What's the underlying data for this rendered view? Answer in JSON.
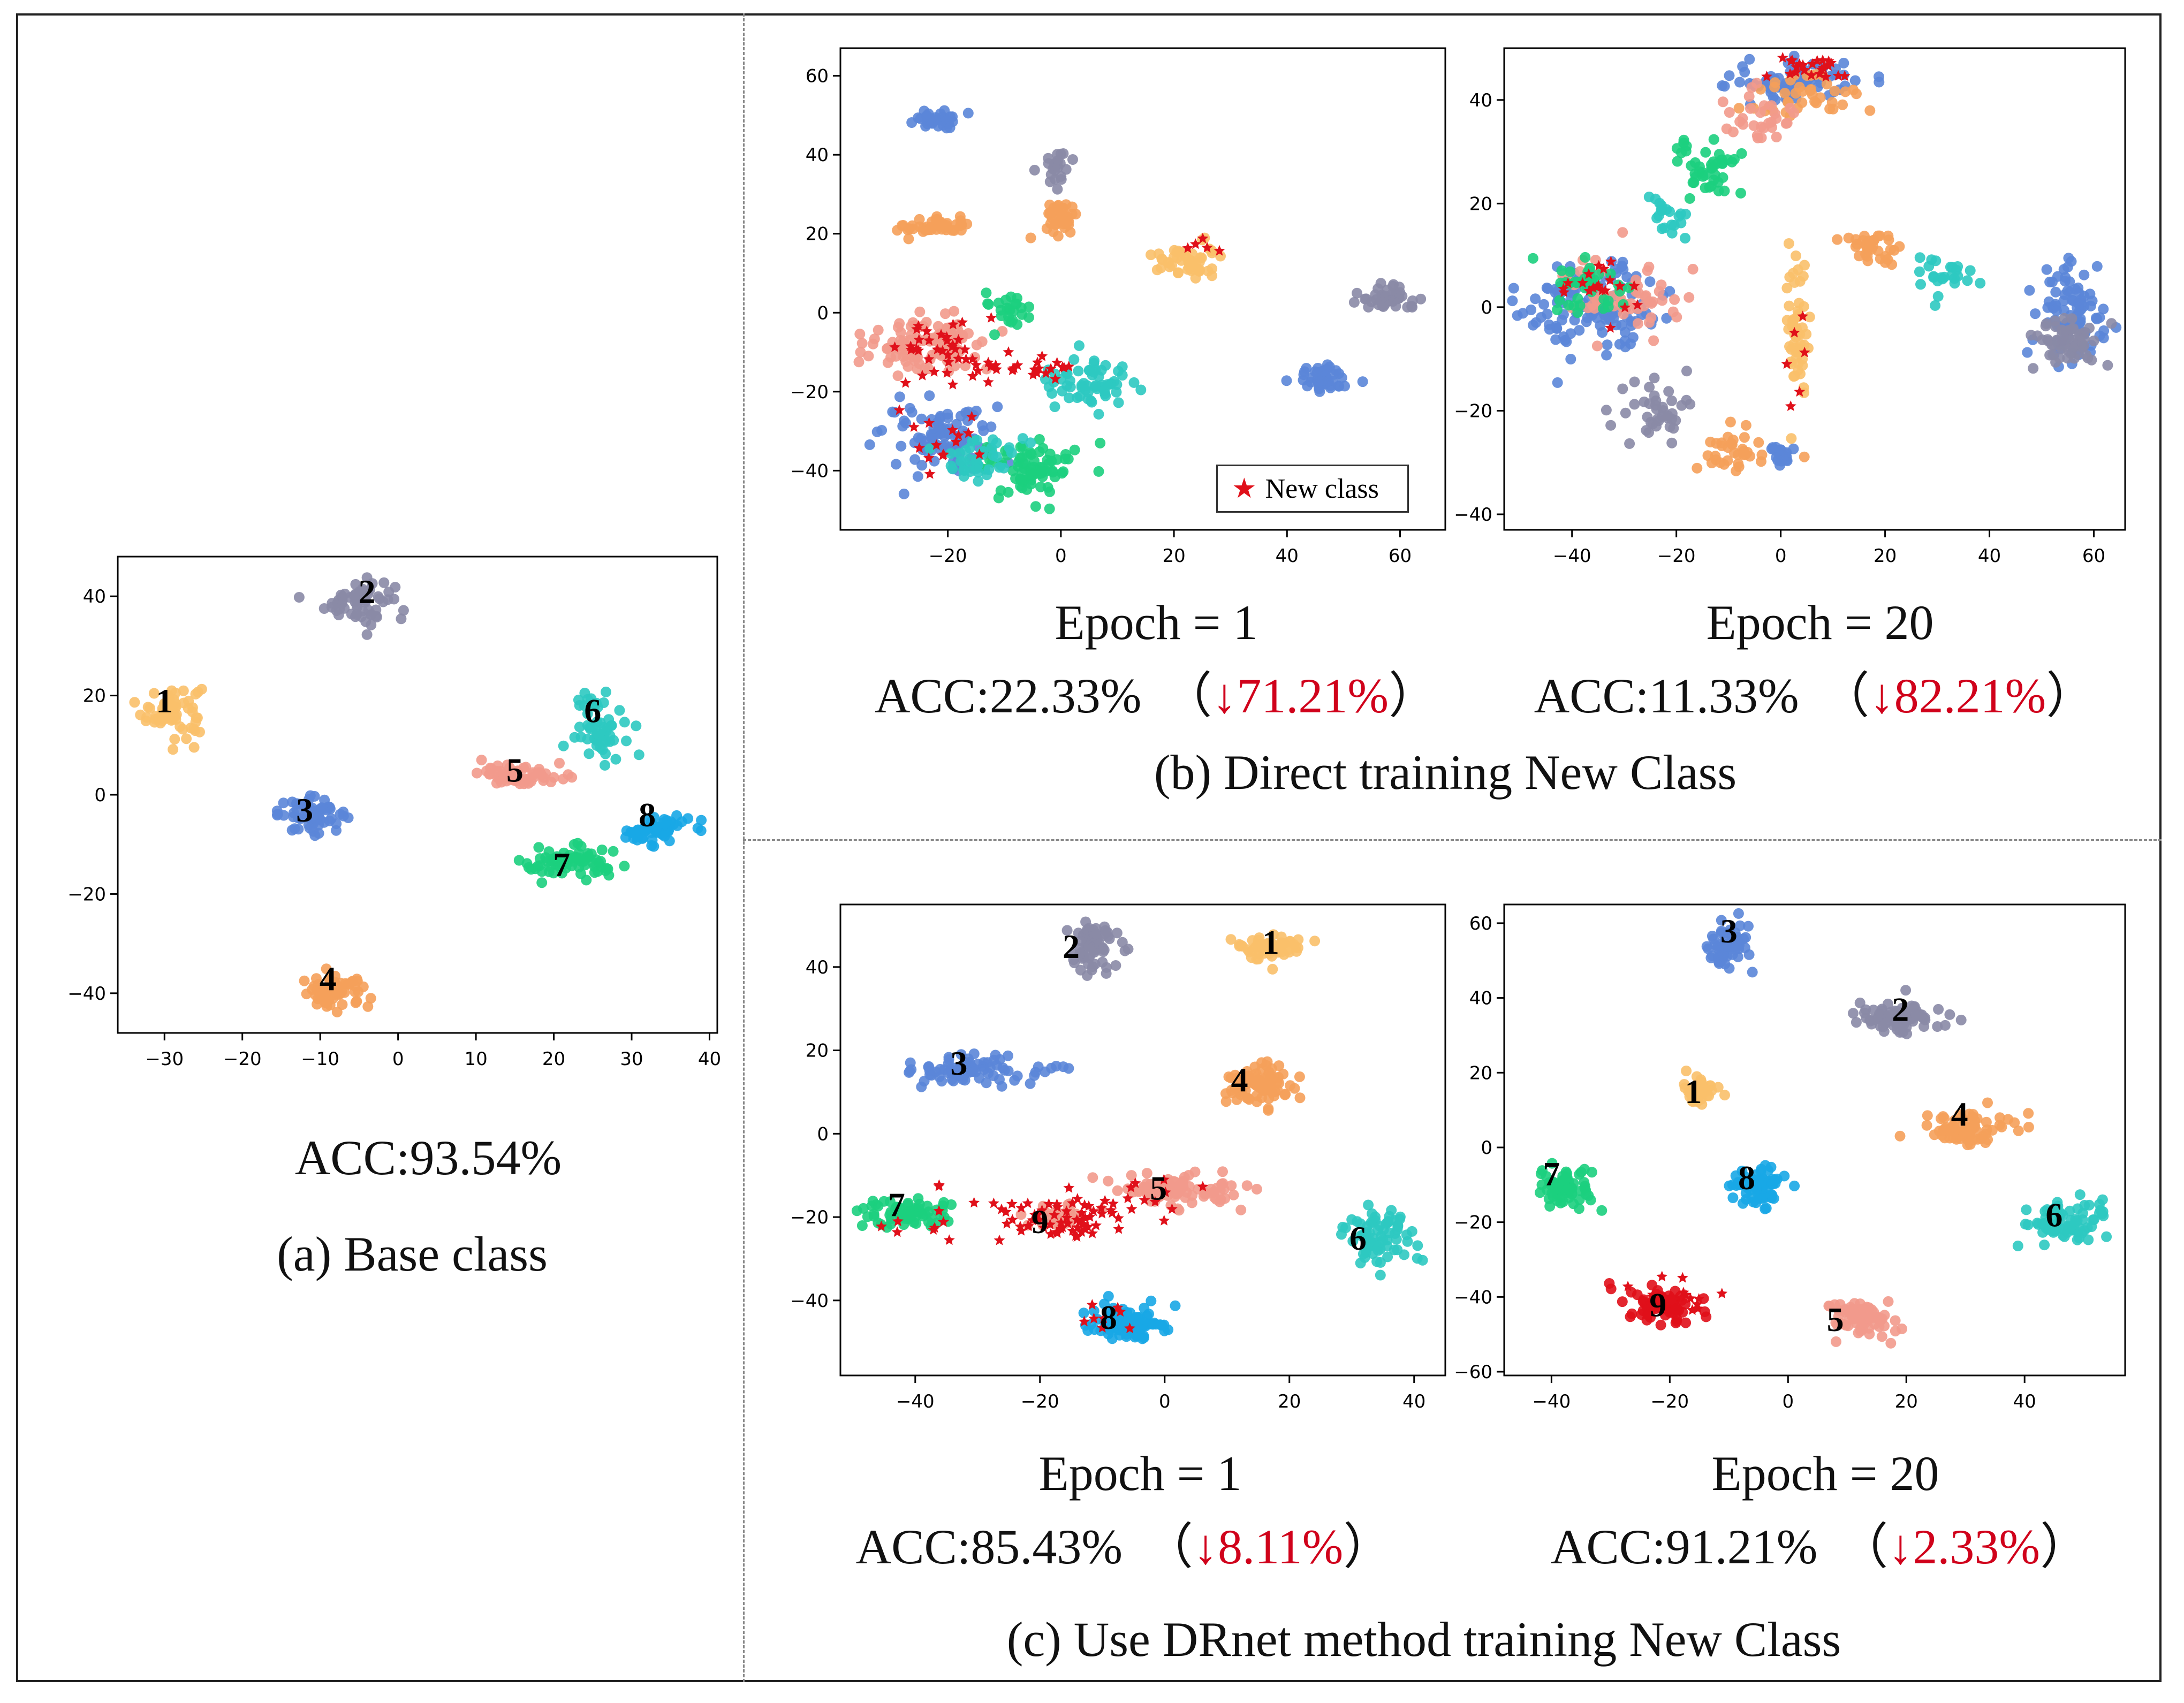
{
  "colors": {
    "c1": "#f9c06a",
    "c2": "#8a8aa6",
    "c3": "#5b86d8",
    "c4": "#f5a05a",
    "c5": "#f29a8c",
    "c6": "#2ec9c1",
    "c7": "#1ccf7e",
    "c8": "#18a7e6",
    "new": "#e0101a"
  },
  "panel_a": {
    "acc": "ACC:93.54%",
    "caption": "(a) Base class"
  },
  "panel_b": {
    "caption": "(b) Direct training New Class",
    "legend": "New class",
    "e1": {
      "epoch": "Epoch = 1",
      "acc": "ACC:22.33%",
      "drop_open": "（",
      "drop": "↓71.21%",
      "drop_close": "）"
    },
    "e20": {
      "epoch": "Epoch = 20",
      "acc": "ACC:11.33%",
      "drop_open": "（",
      "drop": "↓82.21%",
      "drop_close": "）"
    }
  },
  "panel_c": {
    "caption": "(c) Use DRnet method training New Class",
    "e1": {
      "epoch": "Epoch = 1",
      "acc": "ACC:85.43%",
      "drop_open": "（",
      "drop": "↓8.11%",
      "drop_close": "）"
    },
    "e20": {
      "epoch": "Epoch = 20",
      "acc": "ACC:91.21%",
      "drop_open": "（",
      "drop": "↓2.33%",
      "drop_close": "）"
    }
  },
  "chart_data": [
    {
      "id": "a",
      "type": "scatter",
      "xlim": [
        -36,
        41
      ],
      "ylim": [
        -48,
        48
      ],
      "xticks": [
        -30,
        -20,
        -10,
        0,
        10,
        20,
        30,
        40
      ],
      "yticks": [
        -40,
        -20,
        0,
        20,
        40
      ],
      "clusters": [
        {
          "label": "1",
          "color": "c1",
          "cx": -29,
          "cy": 17,
          "rx": 3.5,
          "ry": 5,
          "n": 70,
          "lx": -30,
          "ly": 19
        },
        {
          "label": "2",
          "color": "c2",
          "cx": -5,
          "cy": 39,
          "rx": 4,
          "ry": 4,
          "n": 60,
          "lx": -4,
          "ly": 41
        },
        {
          "label": "3",
          "color": "c3",
          "cx": -11,
          "cy": -4,
          "rx": 4,
          "ry": 3,
          "n": 60,
          "lx": -12,
          "ly": -3
        },
        {
          "label": "4",
          "color": "c4",
          "cx": -8,
          "cy": -40,
          "rx": 4,
          "ry": 3,
          "n": 60,
          "lx": -9,
          "ly": -37
        },
        {
          "label": "5",
          "color": "c5",
          "cx": 16,
          "cy": 4,
          "rx": 5,
          "ry": 2,
          "n": 60,
          "lx": 15,
          "ly": 5
        },
        {
          "label": "6",
          "color": "c6",
          "cx": 26,
          "cy": 14,
          "rx": 3,
          "ry": 6,
          "n": 55,
          "lx": 25,
          "ly": 17
        },
        {
          "label": "7",
          "color": "c7",
          "cx": 22,
          "cy": -14,
          "rx": 6,
          "ry": 3,
          "n": 70,
          "lx": 21,
          "ly": -14
        },
        {
          "label": "8",
          "color": "c8",
          "cx": 33,
          "cy": -7,
          "rx": 4,
          "ry": 3,
          "n": 55,
          "lx": 32,
          "ly": -4
        }
      ],
      "stars": []
    },
    {
      "id": "b1",
      "type": "scatter",
      "xlim": [
        -39,
        68
      ],
      "ylim": [
        -55,
        67
      ],
      "xticks": [
        -20,
        0,
        20,
        40,
        60
      ],
      "yticks": [
        -40,
        -20,
        0,
        20,
        40,
        60
      ],
      "clusters": [
        {
          "label": "",
          "color": "c3",
          "cx": -22,
          "cy": 49,
          "rx": 4,
          "ry": 2.5,
          "n": 30
        },
        {
          "label": "",
          "color": "c4",
          "cx": -22,
          "cy": 22,
          "rx": 5,
          "ry": 2,
          "n": 45
        },
        {
          "label": "",
          "color": "c2",
          "cx": -1,
          "cy": 37,
          "rx": 2,
          "ry": 4,
          "n": 25
        },
        {
          "label": "",
          "color": "c4",
          "cx": 0,
          "cy": 24,
          "rx": 3,
          "ry": 4,
          "n": 40
        },
        {
          "label": "",
          "color": "c1",
          "cx": 22,
          "cy": 13,
          "rx": 5,
          "ry": 4,
          "n": 50
        },
        {
          "label": "",
          "color": "c2",
          "cx": 58,
          "cy": 4,
          "rx": 5,
          "ry": 3,
          "n": 45
        },
        {
          "label": "",
          "color": "c3",
          "cx": 46,
          "cy": -17,
          "rx": 5,
          "ry": 3.5,
          "n": 45
        },
        {
          "label": "",
          "color": "c5",
          "cx": -24,
          "cy": -8,
          "rx": 10,
          "ry": 6,
          "n": 110
        },
        {
          "label": "",
          "color": "c6",
          "cx": 5,
          "cy": -17,
          "rx": 7,
          "ry": 5,
          "n": 60
        },
        {
          "label": "",
          "color": "c7",
          "cx": -10,
          "cy": 0,
          "rx": 4,
          "ry": 5,
          "n": 25
        },
        {
          "label": "",
          "color": "c3",
          "cx": -22,
          "cy": -32,
          "rx": 9,
          "ry": 8,
          "n": 100
        },
        {
          "label": "",
          "color": "c7",
          "cx": -5,
          "cy": -40,
          "rx": 8,
          "ry": 6,
          "n": 80
        },
        {
          "label": "",
          "color": "c6",
          "cx": -15,
          "cy": -36,
          "rx": 6,
          "ry": 6,
          "n": 40
        }
      ],
      "stars": [
        {
          "cx": -22,
          "cy": -10,
          "rx": 10,
          "ry": 7,
          "n": 40
        },
        {
          "cx": -5,
          "cy": -14,
          "rx": 8,
          "ry": 3,
          "n": 20
        },
        {
          "cx": 25,
          "cy": 17,
          "rx": 3,
          "ry": 3,
          "n": 5
        },
        {
          "cx": -20,
          "cy": -32,
          "rx": 8,
          "ry": 7,
          "n": 15
        }
      ]
    },
    {
      "id": "b20",
      "type": "scatter",
      "xlim": [
        -53,
        66
      ],
      "ylim": [
        -43,
        50
      ],
      "xticks": [
        -40,
        -20,
        0,
        20,
        40,
        60
      ],
      "yticks": [
        -40,
        -20,
        0,
        20,
        40
      ],
      "clusters": [
        {
          "label": "",
          "color": "c3",
          "cx": 3,
          "cy": 44,
          "rx": 13,
          "ry": 4,
          "n": 80
        },
        {
          "label": "",
          "color": "c4",
          "cx": 5,
          "cy": 40,
          "rx": 10,
          "ry": 5,
          "n": 40
        },
        {
          "label": "",
          "color": "c5",
          "cx": -4,
          "cy": 36,
          "rx": 6,
          "ry": 5,
          "n": 30
        },
        {
          "label": "",
          "color": "c7",
          "cx": -14,
          "cy": 27,
          "rx": 6,
          "ry": 5,
          "n": 45
        },
        {
          "label": "",
          "color": "c6",
          "cx": -22,
          "cy": 17,
          "rx": 4,
          "ry": 4,
          "n": 20
        },
        {
          "label": "",
          "color": "c3",
          "cx": -36,
          "cy": 0,
          "rx": 12,
          "ry": 8,
          "n": 140
        },
        {
          "label": "",
          "color": "c5",
          "cx": -30,
          "cy": 2,
          "rx": 11,
          "ry": 7,
          "n": 60
        },
        {
          "label": "",
          "color": "c7",
          "cx": -38,
          "cy": 4,
          "rx": 8,
          "ry": 5,
          "n": 40
        },
        {
          "label": "",
          "color": "c2",
          "cx": -24,
          "cy": -20,
          "rx": 6,
          "ry": 6,
          "n": 40
        },
        {
          "label": "",
          "color": "c1",
          "cx": 3,
          "cy": -6,
          "rx": 2,
          "ry": 13,
          "n": 55
        },
        {
          "label": "",
          "color": "c4",
          "cx": 17,
          "cy": 12,
          "rx": 5,
          "ry": 3,
          "n": 35
        },
        {
          "label": "",
          "color": "c6",
          "cx": 30,
          "cy": 6,
          "rx": 6,
          "ry": 3,
          "n": 25
        },
        {
          "label": "",
          "color": "c3",
          "cx": 55,
          "cy": -1,
          "rx": 6,
          "ry": 8,
          "n": 90
        },
        {
          "label": "",
          "color": "c2",
          "cx": 56,
          "cy": -7,
          "rx": 6,
          "ry": 5,
          "n": 60
        },
        {
          "label": "",
          "color": "c4",
          "cx": -9,
          "cy": -28,
          "rx": 6,
          "ry": 4,
          "n": 35
        },
        {
          "label": "",
          "color": "c3",
          "cx": 0,
          "cy": -28,
          "rx": 2,
          "ry": 3,
          "n": 20
        }
      ],
      "stars": [
        {
          "cx": 6,
          "cy": 46,
          "rx": 8,
          "ry": 3,
          "n": 25
        },
        {
          "cx": -34,
          "cy": 3,
          "rx": 10,
          "ry": 6,
          "n": 20
        },
        {
          "cx": 3,
          "cy": -10,
          "rx": 2,
          "ry": 8,
          "n": 6
        }
      ]
    },
    {
      "id": "c1",
      "type": "scatter",
      "xlim": [
        -52,
        45
      ],
      "ylim": [
        -58,
        55
      ],
      "xticks": [
        -40,
        -20,
        0,
        20,
        40
      ],
      "yticks": [
        -40,
        -20,
        0,
        20,
        40
      ],
      "clusters": [
        {
          "label": "2",
          "color": "c2",
          "cx": -12,
          "cy": 44,
          "rx": 4,
          "ry": 6,
          "n": 70,
          "lx": -15,
          "ly": 45
        },
        {
          "label": "1",
          "color": "c1",
          "cx": 17,
          "cy": 45,
          "rx": 5,
          "ry": 3,
          "n": 55,
          "lx": 17,
          "ly": 46
        },
        {
          "label": "3",
          "color": "c3",
          "cx": -30,
          "cy": 15,
          "rx": 10,
          "ry": 3,
          "n": 80,
          "lx": -33,
          "ly": 17
        },
        {
          "label": "4",
          "color": "c4",
          "cx": 15,
          "cy": 12,
          "rx": 5,
          "ry": 5,
          "n": 80,
          "lx": 12,
          "ly": 13
        },
        {
          "label": "5",
          "color": "c5",
          "cx": 2,
          "cy": -14,
          "rx": 10,
          "ry": 4,
          "n": 90,
          "lx": -1,
          "ly": -13
        },
        {
          "label": "6",
          "color": "c6",
          "cx": 35,
          "cy": -25,
          "rx": 5,
          "ry": 6,
          "n": 70,
          "lx": 31,
          "ly": -25
        },
        {
          "label": "7",
          "color": "c7",
          "cx": -42,
          "cy": -19,
          "rx": 6,
          "ry": 3,
          "n": 70,
          "lx": -43,
          "ly": -17
        },
        {
          "label": "9",
          "color": "c5",
          "cx": -18,
          "cy": -20,
          "rx": 4,
          "ry": 3,
          "n": 25,
          "lx": -20,
          "ly": -21
        },
        {
          "label": "8",
          "color": "c8",
          "cx": -6,
          "cy": -46,
          "rx": 6,
          "ry": 4,
          "n": 90,
          "lx": -9,
          "ly": -44
        }
      ],
      "stars": [
        {
          "cx": -18,
          "cy": -20,
          "rx": 10,
          "ry": 6,
          "n": 60
        },
        {
          "cx": -40,
          "cy": -22,
          "rx": 8,
          "ry": 8,
          "n": 10
        },
        {
          "cx": -5,
          "cy": -15,
          "rx": 10,
          "ry": 4,
          "n": 15
        },
        {
          "cx": -10,
          "cy": -44,
          "rx": 6,
          "ry": 4,
          "n": 8
        }
      ]
    },
    {
      "id": "c20",
      "type": "scatter",
      "xlim": [
        -48,
        57
      ],
      "ylim": [
        -61,
        65
      ],
      "xticks": [
        -40,
        -20,
        0,
        20,
        40
      ],
      "yticks": [
        -60,
        -40,
        -20,
        0,
        20,
        40,
        60
      ],
      "clusters": [
        {
          "label": "3",
          "color": "c3",
          "cx": -10,
          "cy": 54,
          "rx": 3,
          "ry": 6,
          "n": 60,
          "lx": -10,
          "ly": 58
        },
        {
          "label": "2",
          "color": "c2",
          "cx": 18,
          "cy": 35,
          "rx": 7,
          "ry": 4,
          "n": 75,
          "lx": 19,
          "ly": 37
        },
        {
          "label": "1",
          "color": "c1",
          "cx": -15,
          "cy": 15,
          "rx": 3,
          "ry": 4,
          "n": 45,
          "lx": -16,
          "ly": 15
        },
        {
          "label": "4",
          "color": "c4",
          "cx": 30,
          "cy": 5,
          "rx": 7,
          "ry": 4,
          "n": 75,
          "lx": 29,
          "ly": 9
        },
        {
          "label": "7",
          "color": "c7",
          "cx": -38,
          "cy": -11,
          "rx": 4,
          "ry": 5,
          "n": 70,
          "lx": -40,
          "ly": -7
        },
        {
          "label": "8",
          "color": "c8",
          "cx": -5,
          "cy": -10,
          "rx": 4,
          "ry": 5,
          "n": 75,
          "lx": -7,
          "ly": -8
        },
        {
          "label": "6",
          "color": "c6",
          "cx": 47,
          "cy": -20,
          "rx": 6,
          "ry": 5,
          "n": 75,
          "lx": 45,
          "ly": -18
        },
        {
          "label": "9",
          "color": "new",
          "cx": -22,
          "cy": -42,
          "rx": 6,
          "ry": 4,
          "n": 70,
          "lx": -22,
          "ly": -42
        },
        {
          "label": "5",
          "color": "c5",
          "cx": 12,
          "cy": -46,
          "rx": 5,
          "ry": 5,
          "n": 70,
          "lx": 8,
          "ly": -46
        }
      ],
      "stars": [
        {
          "cx": -20,
          "cy": -40,
          "rx": 7,
          "ry": 4,
          "n": 20
        }
      ]
    }
  ]
}
